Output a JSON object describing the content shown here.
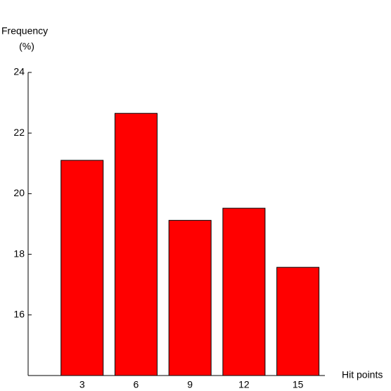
{
  "chart_data": {
    "type": "bar",
    "y_label": "Frequency",
    "y_label_unit": "(%)",
    "x_label": "Hit points",
    "x": [
      3,
      6,
      9,
      12,
      15
    ],
    "values": [
      21.1,
      22.65,
      19.12,
      19.52,
      17.57
    ],
    "color": "#ff0000",
    "xlim": [
      0,
      16.5
    ],
    "xticks": [
      3,
      6,
      9,
      12,
      15
    ],
    "ylim": [
      14,
      24
    ],
    "yticks": [
      16,
      18,
      20,
      22,
      24
    ],
    "grid": false
  }
}
